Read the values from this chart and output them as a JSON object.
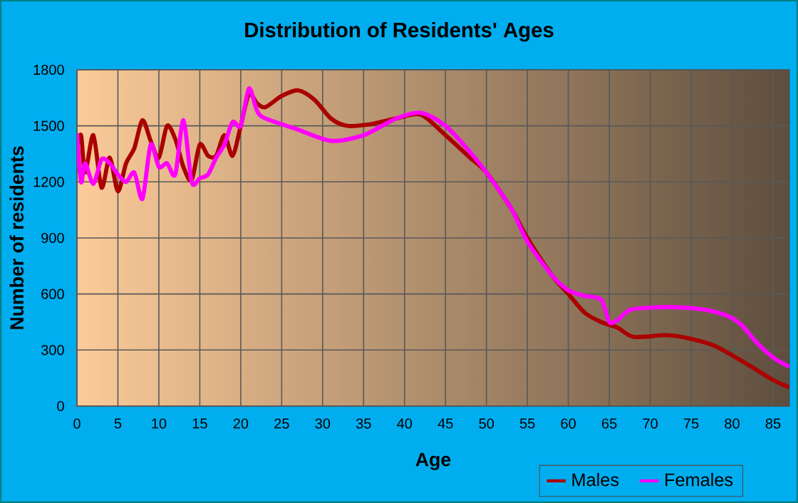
{
  "chart_data": {
    "type": "line",
    "title": "Distribution of Residents' Ages",
    "xlabel": "Age",
    "ylabel": "Number of residents",
    "xlim": [
      0,
      87
    ],
    "xticks": [
      0,
      5,
      10,
      15,
      20,
      25,
      30,
      35,
      40,
      45,
      50,
      55,
      60,
      65,
      70,
      75,
      80,
      85
    ],
    "ylim": [
      0,
      1800
    ],
    "yticks": [
      0,
      300,
      600,
      900,
      1200,
      1500,
      1800
    ],
    "grid": true,
    "legend": "bottom right",
    "marker": "none",
    "line_style": "solid",
    "series": [
      {
        "name": "Males",
        "color": "#aa0000",
        "x": [
          0,
          0.5,
          1,
          2,
          3,
          4,
          5,
          6,
          7,
          8,
          9,
          10,
          11,
          12,
          13,
          14,
          15,
          16,
          17,
          18,
          19,
          20,
          21,
          22,
          23,
          25,
          27,
          29,
          31,
          33,
          36,
          39,
          42,
          45,
          48,
          50,
          53,
          55,
          58,
          60,
          62,
          64,
          66,
          68,
          72,
          75,
          78,
          82,
          85,
          87
        ],
        "values": [
          1390,
          1450,
          1250,
          1450,
          1170,
          1330,
          1150,
          1300,
          1380,
          1530,
          1420,
          1330,
          1500,
          1430,
          1280,
          1210,
          1400,
          1340,
          1340,
          1450,
          1340,
          1500,
          1670,
          1620,
          1600,
          1660,
          1690,
          1640,
          1540,
          1500,
          1510,
          1540,
          1560,
          1450,
          1330,
          1250,
          1060,
          900,
          700,
          600,
          500,
          450,
          420,
          370,
          380,
          360,
          320,
          220,
          140,
          100
        ]
      },
      {
        "name": "Females",
        "color": "#ff00ff",
        "x": [
          0,
          0.5,
          1,
          2,
          3,
          4,
          5,
          6,
          7,
          8,
          9,
          10,
          11,
          12,
          13,
          14,
          15,
          16,
          17,
          18,
          19,
          20,
          21,
          22,
          23,
          27,
          31,
          35,
          39,
          42,
          45,
          48,
          50,
          53,
          55,
          58,
          60,
          62,
          64,
          65,
          66,
          67,
          68,
          72,
          76,
          79,
          81,
          83,
          85,
          87
        ],
        "values": [
          1460,
          1200,
          1300,
          1190,
          1320,
          1300,
          1240,
          1200,
          1250,
          1110,
          1400,
          1280,
          1300,
          1240,
          1530,
          1200,
          1220,
          1240,
          1330,
          1400,
          1520,
          1500,
          1700,
          1580,
          1540,
          1480,
          1420,
          1450,
          1540,
          1570,
          1500,
          1360,
          1250,
          1060,
          880,
          700,
          620,
          590,
          570,
          450,
          460,
          500,
          520,
          530,
          520,
          490,
          440,
          340,
          260,
          210
        ]
      }
    ]
  }
}
